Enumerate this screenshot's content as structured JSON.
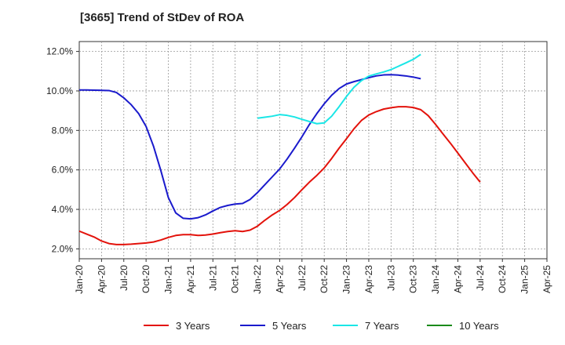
{
  "title": "[3665]  Trend of StDev of ROA",
  "chart_data": {
    "type": "line",
    "title": "[3665]  Trend of StDev of ROA",
    "xlabel": "",
    "ylabel": "",
    "x_ticks": [
      "Jan-20",
      "Apr-20",
      "Jul-20",
      "Oct-20",
      "Jan-21",
      "Apr-21",
      "Jul-21",
      "Oct-21",
      "Jan-22",
      "Apr-22",
      "Jul-22",
      "Oct-22",
      "Jan-23",
      "Apr-23",
      "Jul-23",
      "Oct-23",
      "Jan-24",
      "Apr-24",
      "Jul-24",
      "Oct-24",
      "Jan-25",
      "Apr-25"
    ],
    "y_ticks": [
      "2.0%",
      "4.0%",
      "6.0%",
      "8.0%",
      "10.0%",
      "12.0%"
    ],
    "ylim": [
      1.5,
      12.5
    ],
    "grid": true,
    "legend_position": "bottom",
    "series": [
      {
        "name": "3 Years",
        "color": "#e3120b",
        "points": [
          [
            0,
            2.9
          ],
          [
            1,
            2.75
          ],
          [
            2,
            2.6
          ],
          [
            3,
            2.4
          ],
          [
            4,
            2.27
          ],
          [
            5,
            2.22
          ],
          [
            6,
            2.22
          ],
          [
            7,
            2.24
          ],
          [
            8,
            2.27
          ],
          [
            9,
            2.3
          ],
          [
            10,
            2.35
          ],
          [
            11,
            2.45
          ],
          [
            12,
            2.58
          ],
          [
            13,
            2.68
          ],
          [
            14,
            2.72
          ],
          [
            15,
            2.72
          ],
          [
            16,
            2.68
          ],
          [
            17,
            2.7
          ],
          [
            18,
            2.75
          ],
          [
            19,
            2.82
          ],
          [
            20,
            2.88
          ],
          [
            21,
            2.92
          ],
          [
            22,
            2.88
          ],
          [
            23,
            2.95
          ],
          [
            24,
            3.15
          ],
          [
            25,
            3.45
          ],
          [
            26,
            3.72
          ],
          [
            27,
            3.95
          ],
          [
            28,
            4.25
          ],
          [
            29,
            4.6
          ],
          [
            30,
            5.0
          ],
          [
            31,
            5.38
          ],
          [
            32,
            5.72
          ],
          [
            33,
            6.1
          ],
          [
            34,
            6.58
          ],
          [
            35,
            7.1
          ],
          [
            36,
            7.58
          ],
          [
            37,
            8.08
          ],
          [
            38,
            8.5
          ],
          [
            39,
            8.78
          ],
          [
            40,
            8.95
          ],
          [
            41,
            9.08
          ],
          [
            42,
            9.15
          ],
          [
            43,
            9.2
          ],
          [
            44,
            9.2
          ],
          [
            45,
            9.16
          ],
          [
            46,
            9.05
          ],
          [
            47,
            8.75
          ],
          [
            48,
            8.3
          ],
          [
            49,
            7.82
          ],
          [
            50,
            7.35
          ],
          [
            51,
            6.85
          ],
          [
            52,
            6.35
          ],
          [
            53,
            5.85
          ],
          [
            54,
            5.38
          ]
        ]
      },
      {
        "name": "5 Years",
        "color": "#1a1acc",
        "points": [
          [
            0,
            10.05
          ],
          [
            1,
            10.05
          ],
          [
            2,
            10.04
          ],
          [
            3,
            10.03
          ],
          [
            4,
            10.02
          ],
          [
            5,
            9.92
          ],
          [
            6,
            9.65
          ],
          [
            7,
            9.3
          ],
          [
            8,
            8.85
          ],
          [
            9,
            8.2
          ],
          [
            10,
            7.2
          ],
          [
            11,
            5.95
          ],
          [
            12,
            4.6
          ],
          [
            13,
            3.82
          ],
          [
            14,
            3.55
          ],
          [
            15,
            3.52
          ],
          [
            16,
            3.58
          ],
          [
            17,
            3.72
          ],
          [
            18,
            3.92
          ],
          [
            19,
            4.1
          ],
          [
            20,
            4.2
          ],
          [
            21,
            4.27
          ],
          [
            22,
            4.3
          ],
          [
            23,
            4.5
          ],
          [
            24,
            4.85
          ],
          [
            25,
            5.25
          ],
          [
            26,
            5.65
          ],
          [
            27,
            6.05
          ],
          [
            28,
            6.55
          ],
          [
            29,
            7.1
          ],
          [
            30,
            7.68
          ],
          [
            31,
            8.3
          ],
          [
            32,
            8.85
          ],
          [
            33,
            9.35
          ],
          [
            34,
            9.78
          ],
          [
            35,
            10.12
          ],
          [
            36,
            10.35
          ],
          [
            37,
            10.47
          ],
          [
            38,
            10.57
          ],
          [
            39,
            10.67
          ],
          [
            40,
            10.76
          ],
          [
            41,
            10.81
          ],
          [
            42,
            10.82
          ],
          [
            43,
            10.8
          ],
          [
            44,
            10.76
          ],
          [
            45,
            10.7
          ],
          [
            46,
            10.62
          ]
        ],
        "start_index": 0
      },
      {
        "name": "7 Years",
        "color": "#1ae6e6",
        "points": [
          [
            24,
            8.62
          ],
          [
            25,
            8.67
          ],
          [
            26,
            8.72
          ],
          [
            27,
            8.8
          ],
          [
            28,
            8.76
          ],
          [
            29,
            8.68
          ],
          [
            30,
            8.56
          ],
          [
            31,
            8.45
          ],
          [
            32,
            8.34
          ],
          [
            33,
            8.38
          ],
          [
            34,
            8.72
          ],
          [
            35,
            9.2
          ],
          [
            36,
            9.72
          ],
          [
            37,
            10.18
          ],
          [
            38,
            10.52
          ],
          [
            39,
            10.75
          ],
          [
            40,
            10.86
          ],
          [
            41,
            10.96
          ],
          [
            42,
            11.08
          ],
          [
            43,
            11.25
          ],
          [
            44,
            11.42
          ],
          [
            45,
            11.6
          ],
          [
            46,
            11.85
          ]
        ]
      },
      {
        "name": "10 Years",
        "color": "#1a8a1a",
        "points": []
      }
    ]
  }
}
